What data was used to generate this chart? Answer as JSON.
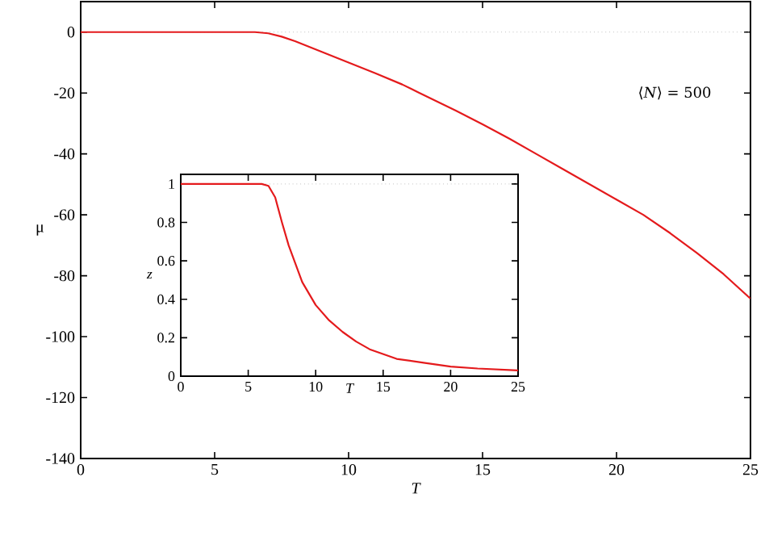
{
  "chart_data": [
    {
      "type": "line",
      "xlabel": "T",
      "ylabel": "μ",
      "xlim": [
        0,
        25
      ],
      "ylim": [
        -140,
        10
      ],
      "xticks": [
        0,
        5,
        10,
        15,
        20,
        25
      ],
      "yticks": [
        -140,
        -120,
        -100,
        -80,
        -60,
        -40,
        -20,
        0
      ],
      "x": [
        0,
        6.5,
        7,
        7.5,
        8,
        9,
        10,
        11,
        12,
        12.65,
        14,
        15,
        16,
        17,
        18,
        19,
        20,
        21,
        22,
        23,
        24,
        25
      ],
      "series": [
        {
          "color": "#e41a1c",
          "values": [
            0,
            0,
            -0.4,
            -1.5,
            -3,
            -6.5,
            -10,
            -13.5,
            -17.2,
            -20,
            -25.8,
            -30.3,
            -35,
            -40,
            -45,
            -50,
            -55,
            -60,
            -66,
            -72.5,
            -79.5,
            -87.5
          ]
        }
      ],
      "ref_lines": [
        {
          "axis": "y",
          "value": 0,
          "color": "#a0a0a0",
          "line_style": "dotted"
        }
      ],
      "annotations": [
        "⟨*N*⟩ = 500"
      ]
    },
    {
      "type": "line",
      "xlabel": "T",
      "ylabel": "z",
      "xlim": [
        0,
        25
      ],
      "ylim": [
        0,
        1.05
      ],
      "xticks": [
        0,
        5,
        10,
        15,
        20,
        25
      ],
      "yticks": [
        0,
        0.2,
        0.4,
        0.6,
        0.8,
        1
      ],
      "x": [
        0,
        6,
        6.5,
        7,
        7.5,
        8,
        9,
        10,
        11,
        12,
        13,
        14,
        16,
        18,
        20,
        22,
        25
      ],
      "series": [
        {
          "color": "#e41a1c",
          "values": [
            1,
            1,
            0.99,
            0.93,
            0.8,
            0.68,
            0.49,
            0.37,
            0.29,
            0.23,
            0.18,
            0.14,
            0.09,
            0.07,
            0.05,
            0.04,
            0.03
          ]
        }
      ],
      "ref_lines": [
        {
          "axis": "y",
          "value": 1,
          "color": "#a0a0a0",
          "line_style": "dotted"
        }
      ]
    }
  ]
}
